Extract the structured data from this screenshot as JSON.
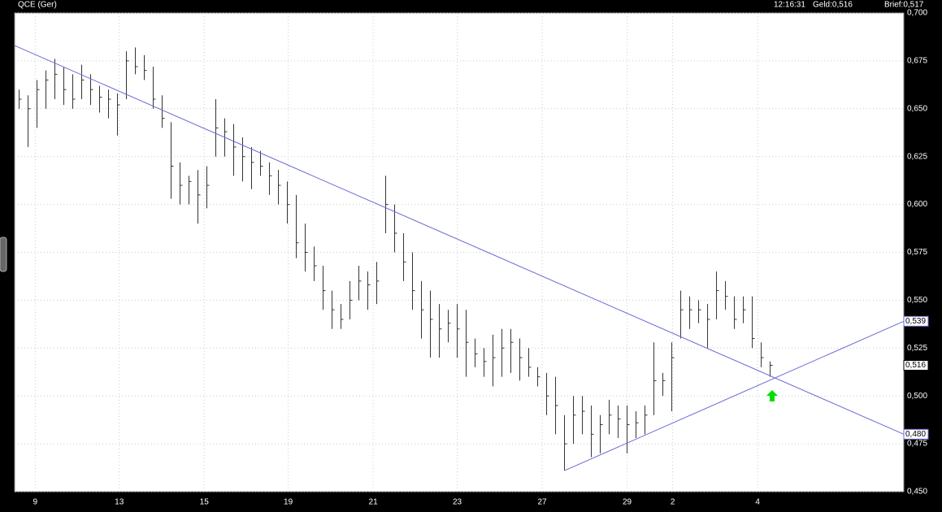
{
  "chart_data": {
    "type": "ohlc",
    "header": {
      "symbol": "QCE (Ger)",
      "time": "12:16:31",
      "bid": "Geld:0,516",
      "ask": "Brief:0,517"
    },
    "xlim": [
      -0.5,
      98.95
    ],
    "xticks": [
      {
        "value": 1.8,
        "label": "9"
      },
      {
        "value": 11.2,
        "label": "13"
      },
      {
        "value": 20.7,
        "label": "15"
      },
      {
        "value": 30.1,
        "label": "19"
      },
      {
        "value": 39.6,
        "label": "21"
      },
      {
        "value": 49.0,
        "label": "23"
      },
      {
        "value": 58.5,
        "label": "27"
      },
      {
        "value": 68.0,
        "label": "29"
      },
      {
        "value": 73.1,
        "label": "2"
      },
      {
        "value": 82.6,
        "label": "4"
      }
    ],
    "ylim": [
      0.45,
      0.7
    ],
    "yticks": [
      {
        "value": 0.45,
        "label": "0,450"
      },
      {
        "value": 0.475,
        "label": "0,475"
      },
      {
        "value": 0.5,
        "label": "0,500"
      },
      {
        "value": 0.525,
        "label": "0,525"
      },
      {
        "value": 0.55,
        "label": "0,550"
      },
      {
        "value": 0.575,
        "label": "0,575"
      },
      {
        "value": 0.6,
        "label": "0,600"
      },
      {
        "value": 0.625,
        "label": "0,625"
      },
      {
        "value": 0.65,
        "label": "0,650"
      },
      {
        "value": 0.675,
        "label": "0,675"
      },
      {
        "value": 0.7,
        "label": "0,700"
      }
    ],
    "grid": true,
    "color": "#333333",
    "x": [
      0,
      1,
      2,
      3,
      4,
      5,
      6,
      7,
      8,
      9,
      10,
      11,
      12,
      13,
      14,
      15,
      16,
      17,
      18,
      19,
      20,
      21,
      22,
      23,
      24,
      25,
      26,
      27,
      28,
      29,
      30,
      31,
      32,
      33,
      34,
      35,
      36,
      37,
      38,
      39,
      40,
      41,
      42,
      43,
      44,
      45,
      46,
      47,
      48,
      49,
      50,
      51,
      52,
      53,
      54,
      55,
      56,
      57,
      58,
      59,
      60,
      61,
      62,
      63,
      64,
      65,
      66,
      67,
      68,
      69,
      70,
      71,
      72,
      73,
      74,
      75,
      76,
      77,
      78,
      79,
      80,
      81,
      82,
      83,
      84
    ],
    "high": [
      0.66,
      0.657,
      0.665,
      0.67,
      0.676,
      0.672,
      0.668,
      0.673,
      0.668,
      0.662,
      0.66,
      0.658,
      0.68,
      0.682,
      0.678,
      0.672,
      0.657,
      0.643,
      0.622,
      0.615,
      0.618,
      0.62,
      0.655,
      0.645,
      0.642,
      0.635,
      0.63,
      0.628,
      0.622,
      0.618,
      0.612,
      0.605,
      0.59,
      0.578,
      0.568,
      0.555,
      0.548,
      0.56,
      0.568,
      0.565,
      0.57,
      0.615,
      0.6,
      0.585,
      0.575,
      0.56,
      0.555,
      0.548,
      0.545,
      0.548,
      0.545,
      0.53,
      0.525,
      0.532,
      0.535,
      0.535,
      0.53,
      0.525,
      0.515,
      0.512,
      0.51,
      0.49,
      0.5,
      0.5,
      0.495,
      0.49,
      0.498,
      0.495,
      0.495,
      0.492,
      0.495,
      0.528,
      0.512,
      0.528,
      0.555,
      0.552,
      0.55,
      0.548,
      0.565,
      0.56,
      0.552,
      0.552,
      0.552,
      0.528,
      0.518
    ],
    "low": [
      0.65,
      0.63,
      0.64,
      0.65,
      0.655,
      0.652,
      0.65,
      0.655,
      0.652,
      0.648,
      0.645,
      0.636,
      0.655,
      0.668,
      0.665,
      0.65,
      0.64,
      0.603,
      0.6,
      0.6,
      0.59,
      0.598,
      0.625,
      0.625,
      0.615,
      0.612,
      0.608,
      0.615,
      0.605,
      0.6,
      0.59,
      0.572,
      0.565,
      0.56,
      0.545,
      0.535,
      0.535,
      0.54,
      0.55,
      0.545,
      0.548,
      0.585,
      0.575,
      0.56,
      0.545,
      0.53,
      0.52,
      0.52,
      0.528,
      0.52,
      0.51,
      0.515,
      0.51,
      0.505,
      0.51,
      0.512,
      0.508,
      0.51,
      0.505,
      0.49,
      0.48,
      0.461,
      0.475,
      0.48,
      0.468,
      0.47,
      0.48,
      0.478,
      0.47,
      0.478,
      0.48,
      0.49,
      0.5,
      0.492,
      0.53,
      0.535,
      0.538,
      0.525,
      0.54,
      0.545,
      0.535,
      0.538,
      0.525,
      0.515,
      0.51
    ],
    "close": [
      0.655,
      0.65,
      0.66,
      0.665,
      0.668,
      0.66,
      0.655,
      0.665,
      0.66,
      0.656,
      0.655,
      0.652,
      0.675,
      0.672,
      0.67,
      0.655,
      0.645,
      0.62,
      0.61,
      0.612,
      0.605,
      0.61,
      0.64,
      0.638,
      0.63,
      0.625,
      0.622,
      0.62,
      0.615,
      0.61,
      0.6,
      0.58,
      0.575,
      0.568,
      0.555,
      0.545,
      0.54,
      0.55,
      0.56,
      0.558,
      0.56,
      0.6,
      0.585,
      0.57,
      0.555,
      0.545,
      0.54,
      0.535,
      0.538,
      0.535,
      0.528,
      0.522,
      0.518,
      0.52,
      0.525,
      0.528,
      0.52,
      0.515,
      0.51,
      0.5,
      0.495,
      0.475,
      0.49,
      0.492,
      0.48,
      0.485,
      0.49,
      0.488,
      0.485,
      0.486,
      0.49,
      0.508,
      0.508,
      0.52,
      0.545,
      0.545,
      0.545,
      0.54,
      0.555,
      0.552,
      0.54,
      0.545,
      0.53,
      0.52,
      0.516
    ],
    "trendlines": [
      {
        "x": [
          -0.5,
          98.95
        ],
        "y": [
          0.683,
          0.48
        ],
        "label": "0,480",
        "color": "#6a6ad8"
      },
      {
        "x": [
          61,
          98.95
        ],
        "y": [
          0.461,
          0.539
        ],
        "label": "0,539",
        "color": "#6a6ad8"
      }
    ],
    "last_price": {
      "value": 0.516,
      "label": "0,516"
    }
  }
}
